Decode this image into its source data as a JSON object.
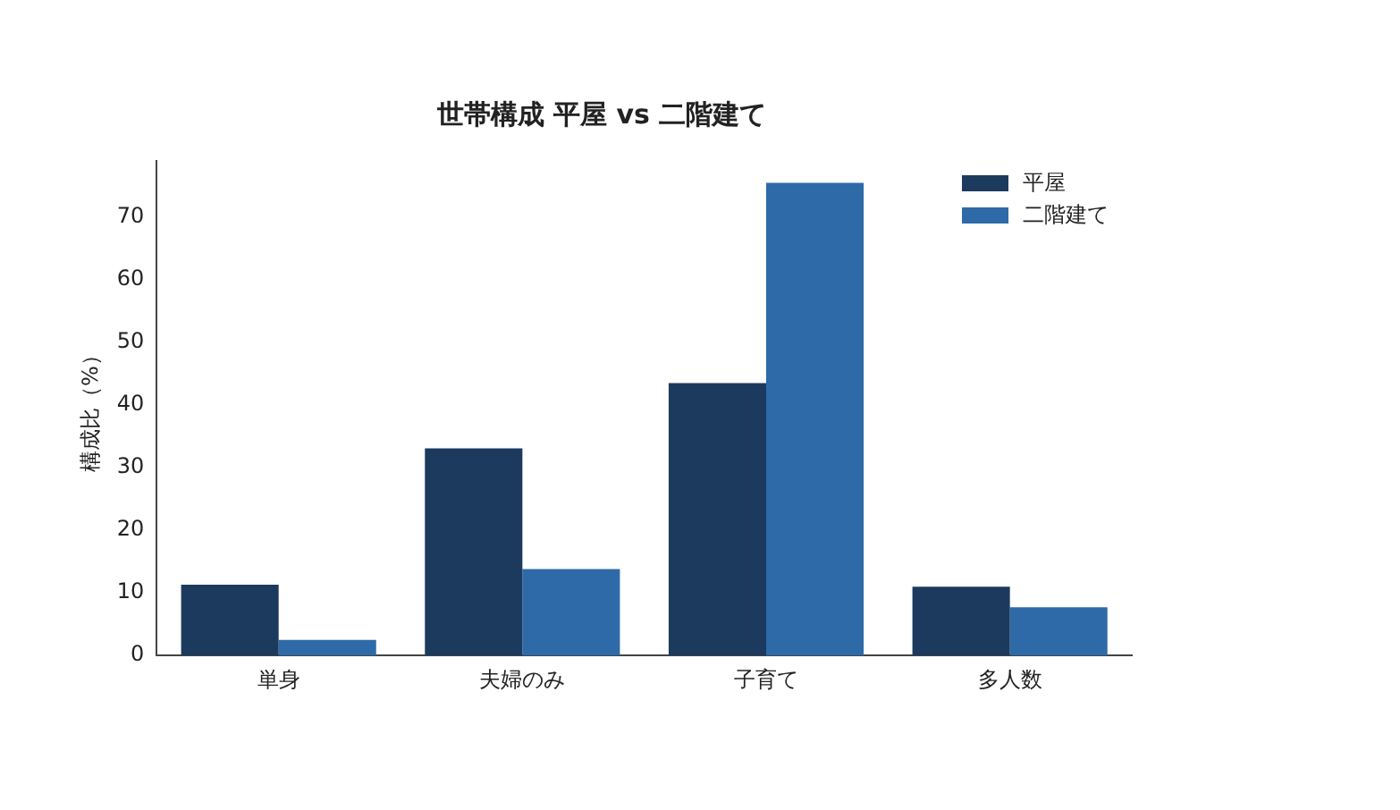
{
  "chart_data": {
    "type": "bar",
    "title": "世帯構成 平屋 vs 二階建て",
    "ylabel": "構成比（%）",
    "categories": [
      "単身",
      "夫婦のみ",
      "子育て",
      "多人数"
    ],
    "series": [
      {
        "name": "平屋",
        "color": "#1c3a5e",
        "values": [
          11.3,
          33.1,
          43.5,
          11.0
        ]
      },
      {
        "name": "二階建て",
        "color": "#2e6aa8",
        "values": [
          2.5,
          13.8,
          75.5,
          7.7
        ]
      }
    ],
    "ylim": [
      0,
      79
    ],
    "yticks": [
      0,
      10,
      20,
      30,
      40,
      50,
      60,
      70
    ],
    "grid": false,
    "legend": "top right"
  }
}
